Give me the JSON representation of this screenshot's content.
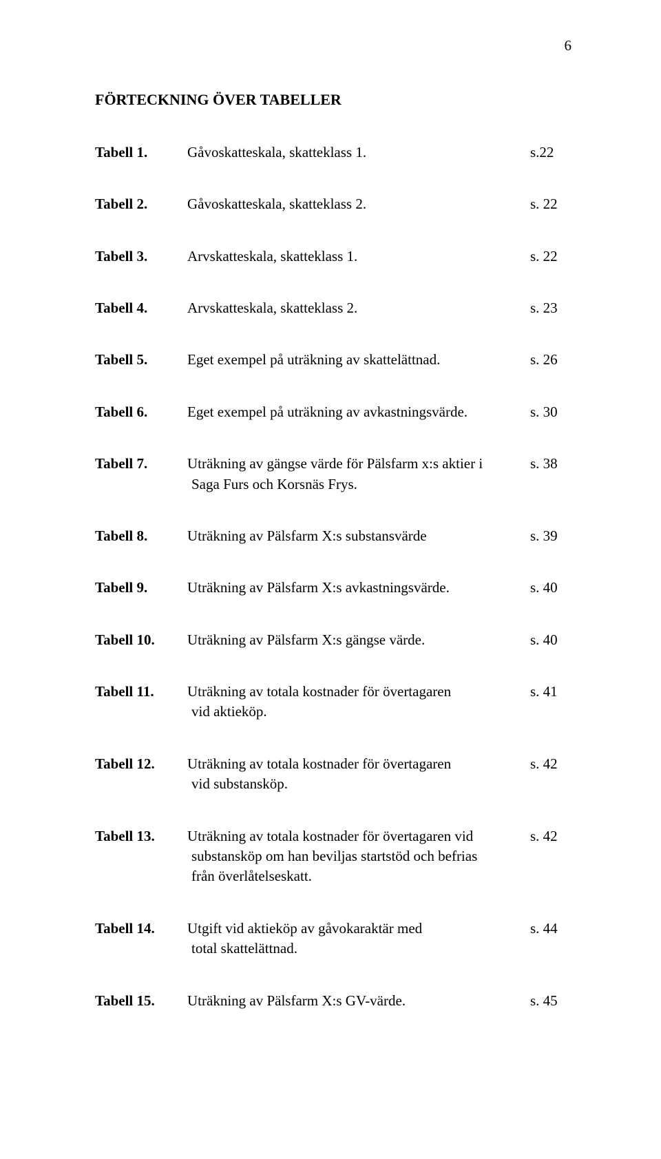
{
  "pageNumber": "6",
  "heading": "FÖRTECKNING ÖVER TABELLER",
  "entries": [
    {
      "label": "Tabell 1.",
      "desc": [
        "Gåvoskatteskala, skatteklass 1."
      ],
      "page": "s.22"
    },
    {
      "label": "Tabell 2.",
      "desc": [
        "Gåvoskatteskala, skatteklass 2."
      ],
      "page": "s. 22"
    },
    {
      "label": "Tabell 3.",
      "desc": [
        "Arvskatteskala, skatteklass 1."
      ],
      "page": "s. 22"
    },
    {
      "label": "Tabell 4.",
      "desc": [
        "Arvskatteskala, skatteklass 2."
      ],
      "page": "s. 23"
    },
    {
      "label": "Tabell 5.",
      "desc": [
        "Eget exempel på uträkning av skattelättnad."
      ],
      "page": "s. 26"
    },
    {
      "label": "Tabell 6.",
      "desc": [
        "Eget exempel på uträkning av avkastningsvärde."
      ],
      "page": "s. 30"
    },
    {
      "label": "Tabell 7.",
      "desc": [
        "Uträkning av gängse värde för Pälsfarm x:s aktier i",
        "Saga Furs och Korsnäs Frys."
      ],
      "page": "s. 38"
    },
    {
      "label": "Tabell 8.",
      "desc": [
        "Uträkning av Pälsfarm X:s substansvärde"
      ],
      "page": "s. 39"
    },
    {
      "label": "Tabell 9.",
      "desc": [
        "Uträkning av Pälsfarm X:s avkastningsvärde."
      ],
      "page": "s. 40"
    },
    {
      "label": "Tabell 10.",
      "desc": [
        "Uträkning av Pälsfarm X:s gängse värde."
      ],
      "page": "s. 40"
    },
    {
      "label": "Tabell 11.",
      "desc": [
        "Uträkning av totala kostnader för övertagaren",
        "vid aktieköp."
      ],
      "page": "s. 41"
    },
    {
      "label": "Tabell 12.",
      "desc": [
        "Uträkning av totala kostnader för övertagaren",
        "vid substansköp."
      ],
      "page": "s. 42"
    },
    {
      "label": "Tabell 13.",
      "desc": [
        "Uträkning av totala kostnader för övertagaren vid",
        "substansköp om han beviljas startstöd och befrias",
        "från överlåtelseskatt."
      ],
      "page": "s. 42"
    },
    {
      "label": "Tabell 14.",
      "desc": [
        "Utgift vid aktieköp av gåvokaraktär med",
        "total skattelättnad."
      ],
      "page": "s. 44"
    },
    {
      "label": "Tabell 15.",
      "desc": [
        "Uträkning av Pälsfarm X:s GV-värde."
      ],
      "page": "s. 45"
    }
  ]
}
